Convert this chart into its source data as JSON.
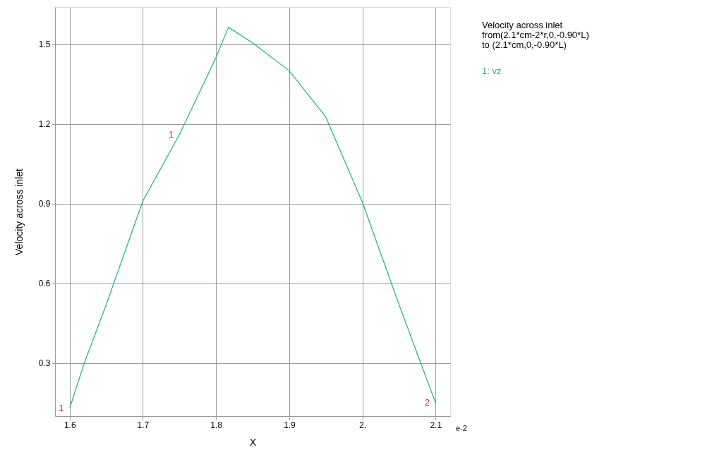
{
  "chart_data": {
    "type": "line",
    "title": [
      "Velocity across inlet",
      "from(2.1*cm-2*r,0,-0.90*L)",
      "to (2.1*cm,0,-0.90*L)"
    ],
    "xlabel": "X",
    "ylabel": "Velocity across inlet",
    "x": [
      1.6,
      1.62,
      1.65,
      1.7,
      1.75,
      1.8,
      1.817,
      1.85,
      1.9,
      1.95,
      2.0,
      2.05,
      2.1
    ],
    "series": [
      {
        "name": "1: vz",
        "color": "#1fb478",
        "values": [
          0.13,
          0.3,
          0.52,
          0.91,
          1.16,
          1.45,
          1.564,
          1.505,
          1.4,
          1.226,
          0.905,
          0.52,
          0.15
        ]
      }
    ],
    "xlim": [
      1.58,
      2.12
    ],
    "ylim": [
      0.1,
      1.64
    ],
    "xticks": [
      1.6,
      1.7,
      1.8,
      1.9,
      {
        "value": 2.0,
        "label": "2."
      },
      2.1
    ],
    "yticks": [
      0.3,
      0.6,
      0.9,
      1.2,
      1.5
    ],
    "grid": true,
    "legend": "top right",
    "marker": "none",
    "line_style": "solid",
    "annotations": [
      "e-2",
      {
        "text": "1",
        "x": 1.6,
        "y": 0.13
      },
      {
        "text": "1",
        "x": 1.75,
        "y": 1.16
      },
      {
        "text": "2",
        "x": 2.1,
        "y": 0.15
      }
    ]
  }
}
